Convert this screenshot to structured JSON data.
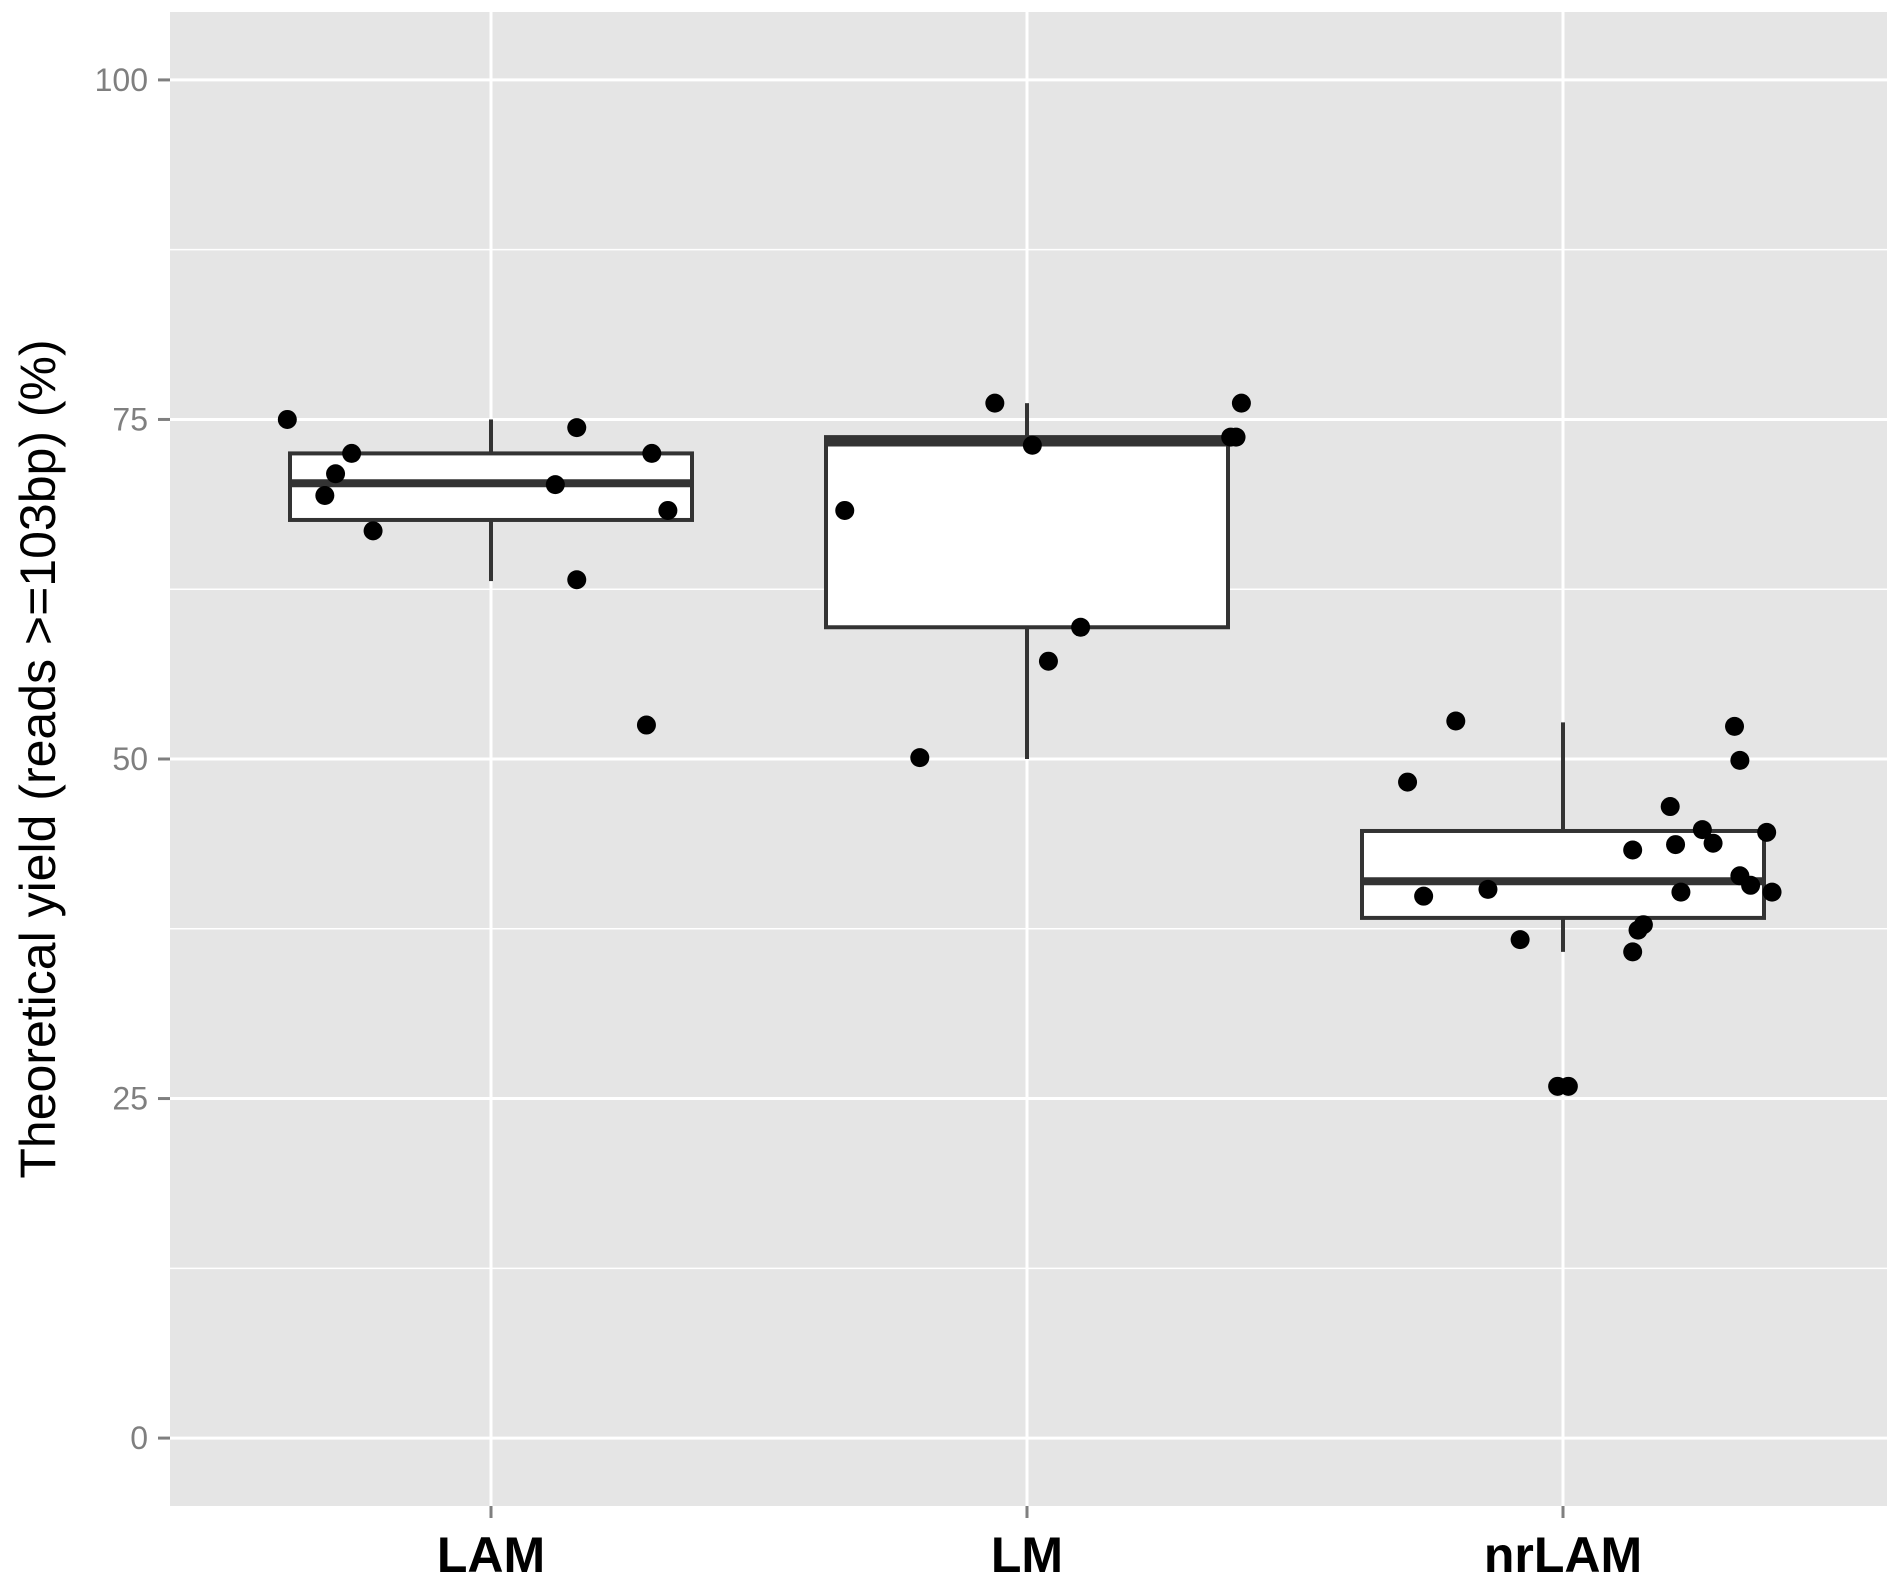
{
  "chart_data": {
    "type": "box",
    "title": "",
    "xlabel": "",
    "ylabel": "Theoretical yield (reads >=103bp) (%)",
    "ylim": [
      -5,
      105
    ],
    "yticks": [
      0,
      25,
      50,
      75,
      100
    ],
    "y_minor_ticks": [
      12.5,
      37.5,
      62.5,
      87.5
    ],
    "grid": true,
    "legend": "none",
    "colors": {
      "panel": "#e5e5e5",
      "grid": "#ffffff",
      "box_fill": "#ffffff",
      "box_line": "#333333",
      "point": "#000000"
    },
    "categories": [
      "LAM",
      "LM",
      "nrLAM"
    ],
    "boxes": [
      {
        "category": "LAM",
        "whisker_low": 63.1,
        "q1": 67.6,
        "median": 70.3,
        "q3": 72.5,
        "whisker_high": 75.0
      },
      {
        "category": "LM",
        "whisker_low": 50.0,
        "q1": 59.7,
        "median": 73.3,
        "q3": 73.7,
        "whisker_high": 76.2
      },
      {
        "category": "nrLAM",
        "whisker_low": 35.8,
        "q1": 38.3,
        "median": 41.0,
        "q3": 44.7,
        "whisker_high": 52.7
      }
    ],
    "points": [
      {
        "category": "LAM",
        "x_offset": -0.38,
        "y": 75.0
      },
      {
        "category": "LAM",
        "x_offset": -0.31,
        "y": 69.4
      },
      {
        "category": "LAM",
        "x_offset": -0.29,
        "y": 71.0
      },
      {
        "category": "LAM",
        "x_offset": -0.26,
        "y": 72.5
      },
      {
        "category": "LAM",
        "x_offset": -0.22,
        "y": 66.8
      },
      {
        "category": "LAM",
        "x_offset": 0.12,
        "y": 70.2
      },
      {
        "category": "LAM",
        "x_offset": 0.16,
        "y": 74.4
      },
      {
        "category": "LAM",
        "x_offset": 0.16,
        "y": 63.2
      },
      {
        "category": "LAM",
        "x_offset": 0.29,
        "y": 52.5
      },
      {
        "category": "LAM",
        "x_offset": 0.3,
        "y": 72.5
      },
      {
        "category": "LAM",
        "x_offset": 0.33,
        "y": 68.3
      },
      {
        "category": "LM",
        "x_offset": -0.34,
        "y": 68.3
      },
      {
        "category": "LM",
        "x_offset": -0.2,
        "y": 50.1
      },
      {
        "category": "LM",
        "x_offset": -0.06,
        "y": 76.2
      },
      {
        "category": "LM",
        "x_offset": 0.01,
        "y": 73.1
      },
      {
        "category": "LM",
        "x_offset": 0.04,
        "y": 57.2
      },
      {
        "category": "LM",
        "x_offset": 0.1,
        "y": 59.7
      },
      {
        "category": "LM",
        "x_offset": 0.38,
        "y": 73.7
      },
      {
        "category": "LM",
        "x_offset": 0.39,
        "y": 73.7
      },
      {
        "category": "LM",
        "x_offset": 0.4,
        "y": 76.2
      },
      {
        "category": "nrLAM",
        "x_offset": -0.29,
        "y": 48.3
      },
      {
        "category": "nrLAM",
        "x_offset": -0.26,
        "y": 39.9
      },
      {
        "category": "nrLAM",
        "x_offset": -0.2,
        "y": 52.8
      },
      {
        "category": "nrLAM",
        "x_offset": -0.14,
        "y": 40.4
      },
      {
        "category": "nrLAM",
        "x_offset": -0.08,
        "y": 36.7
      },
      {
        "category": "nrLAM",
        "x_offset": -0.01,
        "y": 25.9
      },
      {
        "category": "nrLAM",
        "x_offset": 0.01,
        "y": 25.9
      },
      {
        "category": "nrLAM",
        "x_offset": 0.13,
        "y": 43.3
      },
      {
        "category": "nrLAM",
        "x_offset": 0.13,
        "y": 35.8
      },
      {
        "category": "nrLAM",
        "x_offset": 0.14,
        "y": 37.4
      },
      {
        "category": "nrLAM",
        "x_offset": 0.15,
        "y": 37.8
      },
      {
        "category": "nrLAM",
        "x_offset": 0.2,
        "y": 46.5
      },
      {
        "category": "nrLAM",
        "x_offset": 0.21,
        "y": 43.7
      },
      {
        "category": "nrLAM",
        "x_offset": 0.22,
        "y": 40.2
      },
      {
        "category": "nrLAM",
        "x_offset": 0.26,
        "y": 44.8
      },
      {
        "category": "nrLAM",
        "x_offset": 0.28,
        "y": 43.8
      },
      {
        "category": "nrLAM",
        "x_offset": 0.32,
        "y": 52.4
      },
      {
        "category": "nrLAM",
        "x_offset": 0.33,
        "y": 49.9
      },
      {
        "category": "nrLAM",
        "x_offset": 0.33,
        "y": 41.4
      },
      {
        "category": "nrLAM",
        "x_offset": 0.35,
        "y": 40.7
      },
      {
        "category": "nrLAM",
        "x_offset": 0.38,
        "y": 44.6
      },
      {
        "category": "nrLAM",
        "x_offset": 0.39,
        "y": 40.2
      }
    ]
  }
}
